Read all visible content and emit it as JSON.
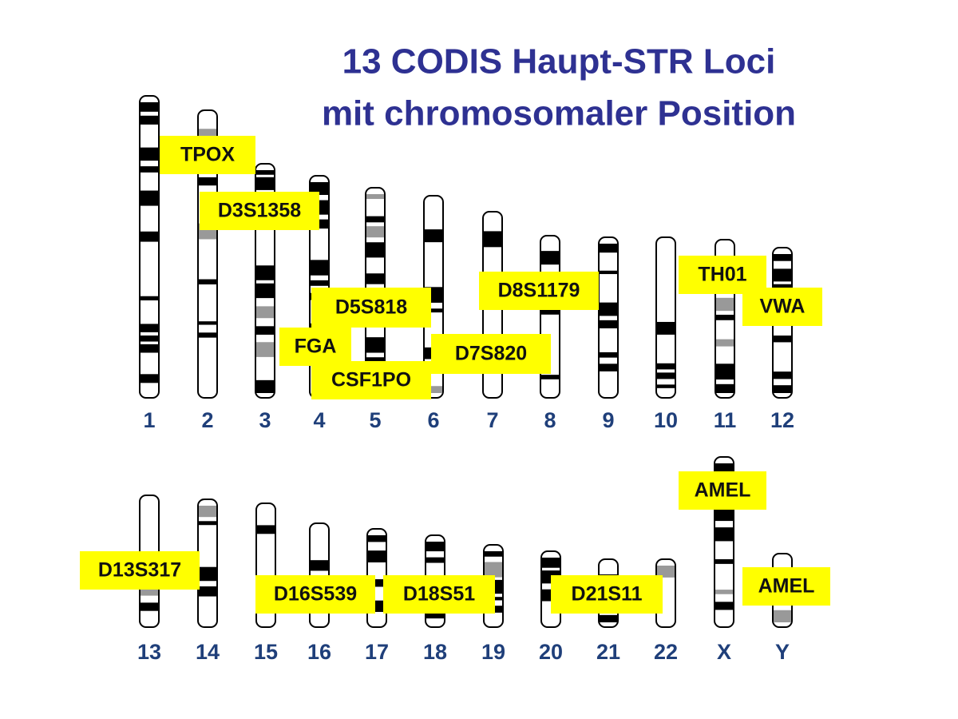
{
  "title": [
    "13 CODIS Haupt-STR Loci",
    "mit chromosomaler Position"
  ],
  "chromosomes": [
    "1",
    "2",
    "3",
    "4",
    "5",
    "6",
    "7",
    "8",
    "9",
    "10",
    "11",
    "12",
    "13",
    "14",
    "15",
    "16",
    "17",
    "18",
    "19",
    "20",
    "21",
    "22",
    "X",
    "Y"
  ],
  "loci": [
    "TPOX",
    "D3S1358",
    "D5S818",
    "FGA",
    "CSF1PO",
    "D7S820",
    "D8S1179",
    "TH01",
    "VWA",
    "D13S317",
    "D16S539",
    "D18S51",
    "D21S11",
    "AMEL",
    "AMEL"
  ]
}
